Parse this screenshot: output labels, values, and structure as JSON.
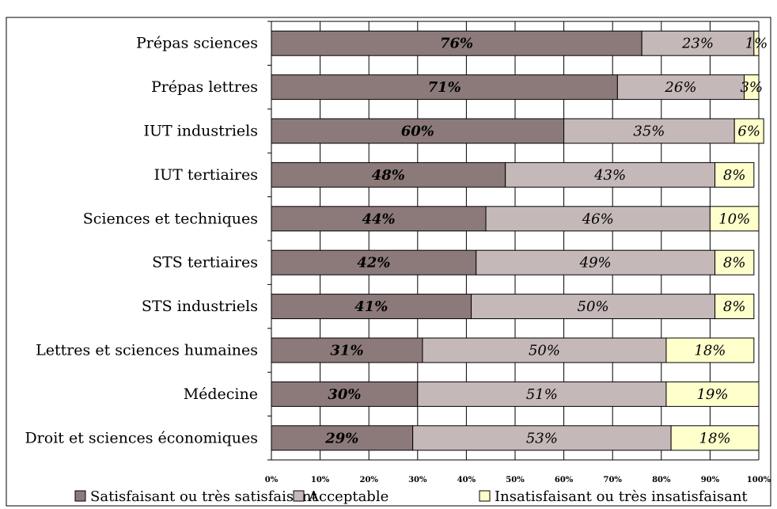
{
  "chart_data": {
    "type": "bar",
    "orientation": "horizontal",
    "stacked": true,
    "categories": [
      "Prépas sciences",
      "Prépas lettres",
      "IUT industriels",
      "IUT tertiaires",
      "Sciences et techniques",
      "STS tertiaires",
      "STS industriels",
      "Lettres et sciences humaines",
      "Médecine",
      "Droit et sciences économiques"
    ],
    "series": [
      {
        "name": "Satisfaisant ou très satisfaisant",
        "color": "#8c7a7a",
        "values": [
          76,
          71,
          60,
          48,
          44,
          42,
          41,
          31,
          30,
          29
        ],
        "labels": [
          "76%",
          "71%",
          "60%",
          "48%",
          "44%",
          "42%",
          "41%",
          "31%",
          "30%",
          "29%"
        ]
      },
      {
        "name": "Acceptable",
        "color": "#c4b8b8",
        "values": [
          23,
          26,
          35,
          43,
          46,
          49,
          50,
          50,
          51,
          53
        ],
        "labels": [
          "23%",
          "26%",
          "35%",
          "43%",
          "46%",
          "49%",
          "50%",
          "50%",
          "51%",
          "53%"
        ]
      },
      {
        "name": "Insatisfaisant ou très insatisfaisant",
        "color": "#ffffcc",
        "values": [
          1,
          3,
          6,
          8,
          10,
          8,
          8,
          18,
          19,
          18
        ],
        "labels": [
          "1%",
          "3%",
          "6%",
          "8%",
          "10%",
          "8%",
          "8%",
          "18%",
          "19%",
          "18%"
        ]
      }
    ],
    "xlim": [
      0,
      100
    ],
    "x_ticks": [
      "0%",
      "10%",
      "20%",
      "30%",
      "40%",
      "50%",
      "60%",
      "70%",
      "80%",
      "90%",
      "100%"
    ],
    "grid": true,
    "legend_position": "bottom"
  }
}
